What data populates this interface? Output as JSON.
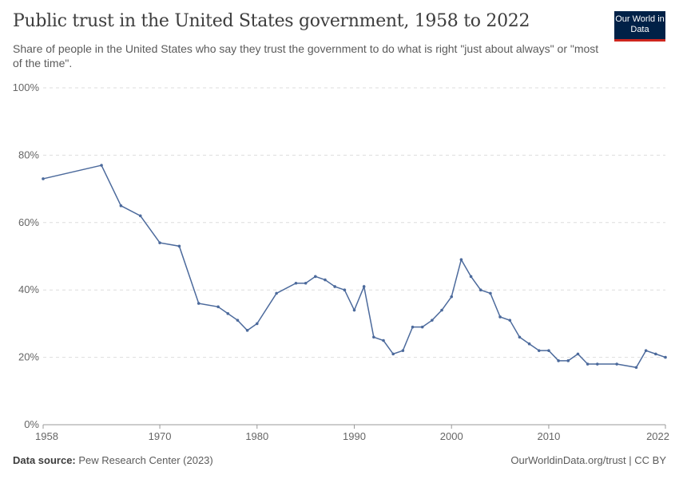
{
  "header": {
    "title": "Public trust in the United States government, 1958 to 2022",
    "subtitle": "Share of people in the United States who say they trust the government to do what is right \"just about always\" or \"most of the time\".",
    "logo_text": "Our World in Data"
  },
  "footer": {
    "source_label": "Data source:",
    "source": "Pew Research Center (2023)",
    "right": "OurWorldinData.org/trust | CC BY"
  },
  "chart_data": {
    "type": "line",
    "title": "Public trust in the United States government, 1958 to 2022",
    "xlabel": "",
    "ylabel": "",
    "xlim": [
      1958,
      2022
    ],
    "ylim": [
      0,
      100
    ],
    "grid": "horizontal dashed",
    "x_ticks": [
      "1958",
      "1970",
      "1980",
      "1990",
      "2000",
      "2010",
      "2022"
    ],
    "y_ticks": [
      "0%",
      "20%",
      "40%",
      "60%",
      "80%",
      "100%"
    ],
    "color": "#4c6a9c",
    "x": [
      1958,
      1964,
      1966,
      1968,
      1970,
      1972,
      1974,
      1976,
      1977,
      1978,
      1979,
      1980,
      1982,
      1984,
      1985,
      1986,
      1987,
      1988,
      1989,
      1990,
      1991,
      1992,
      1993,
      1994,
      1995,
      1996,
      1997,
      1998,
      1999,
      2000,
      2001,
      2002,
      2003,
      2004,
      2005,
      2006,
      2007,
      2008,
      2009,
      2010,
      2011,
      2012,
      2013,
      2014,
      2015,
      2017,
      2019,
      2020,
      2021,
      2022
    ],
    "y": [
      73,
      77,
      65,
      62,
      54,
      53,
      36,
      35,
      33,
      31,
      28,
      30,
      39,
      42,
      42,
      44,
      43,
      41,
      40,
      34,
      41,
      26,
      25,
      21,
      22,
      29,
      29,
      31,
      34,
      38,
      49,
      44,
      40,
      39,
      32,
      31,
      26,
      24,
      22,
      22,
      19,
      19,
      21,
      18,
      18,
      18,
      17,
      22,
      21,
      20
    ]
  }
}
